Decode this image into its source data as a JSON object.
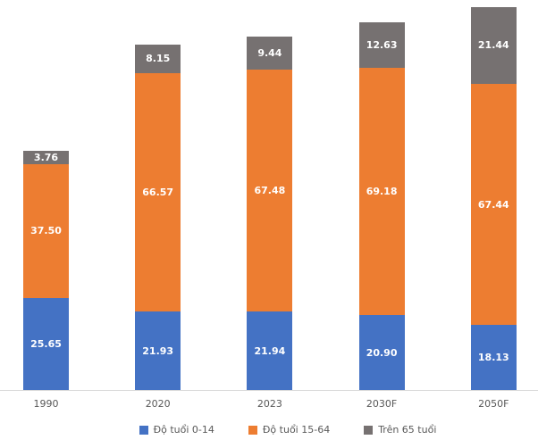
{
  "chart_data": {
    "type": "bar",
    "stacked": true,
    "title": "",
    "xlabel": "",
    "ylabel": "",
    "grid": false,
    "legend_position": "bottom",
    "value_labels_shown": true,
    "axis_line_color": "#d9d9d9",
    "axis_label_color": "#595959",
    "value_label_color": "#ffffff",
    "categories": [
      "1990",
      "2020",
      "2023",
      "2030F",
      "2050F"
    ],
    "series": [
      {
        "name": "Độ tuổi 0-14",
        "color": "#4472c4",
        "values": [
          25.65,
          21.93,
          21.94,
          20.9,
          18.13
        ]
      },
      {
        "name": "Độ tuổi 15-64",
        "color": "#ed7d31",
        "values": [
          37.5,
          66.57,
          67.48,
          69.18,
          67.44
        ]
      },
      {
        "name": "Trên 65 tuổi",
        "color": "#767171",
        "values": [
          3.76,
          8.15,
          9.44,
          12.63,
          21.44
        ]
      }
    ],
    "totals": [
      66.91,
      96.65,
      98.86,
      102.71,
      107.01
    ]
  }
}
